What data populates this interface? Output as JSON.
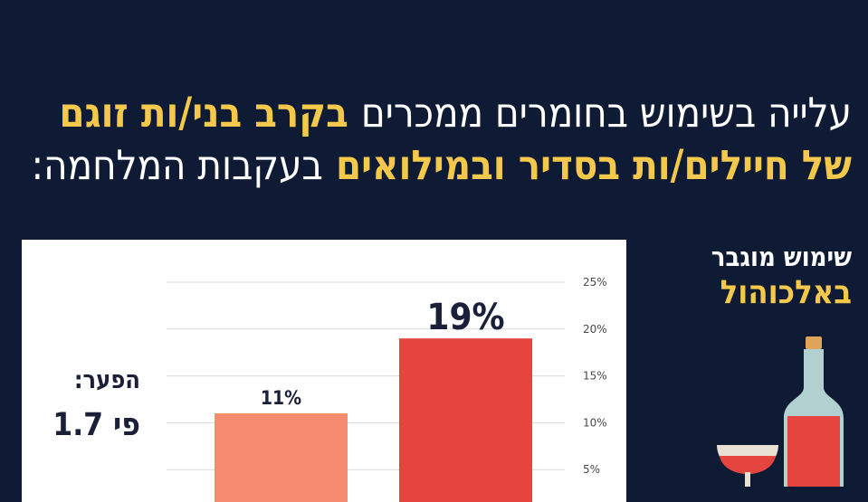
{
  "headline": {
    "line1_plain": "עלייה בשימוש בחומרים ממכרים",
    "line1_highlight": "בקרב בני/ות זוגם",
    "line2_highlight": "של חיילים/ות בסדיר ובמילואים",
    "line2_plain": "בעקבות המלחמה:"
  },
  "side": {
    "line1": "שימוש מוגבר",
    "line2": "באלכוהול"
  },
  "gap": {
    "label": "הפער:",
    "value": "פי 1.7"
  },
  "colors": {
    "background": "#0f1a35",
    "accent": "#f3c84b",
    "bar_light": "#f68c6f",
    "bar_dark": "#e5443f",
    "text_dark": "#1a1f3a"
  },
  "illustration": {
    "icon": "wine-bottle-and-glass-icon"
  },
  "chart_data": {
    "type": "bar",
    "title": "",
    "xlabel": "",
    "ylabel": "",
    "ylim": [
      0,
      25
    ],
    "y_ticks": [
      5,
      10,
      15,
      20,
      25
    ],
    "y_tick_labels": [
      "5%",
      "10%",
      "15%",
      "20%",
      "25%"
    ],
    "grid": true,
    "categories": [
      "",
      ""
    ],
    "values": [
      11,
      19
    ],
    "data_labels": [
      "11%",
      "19%"
    ],
    "bar_colors": [
      "#f68c6f",
      "#e5443f"
    ]
  }
}
